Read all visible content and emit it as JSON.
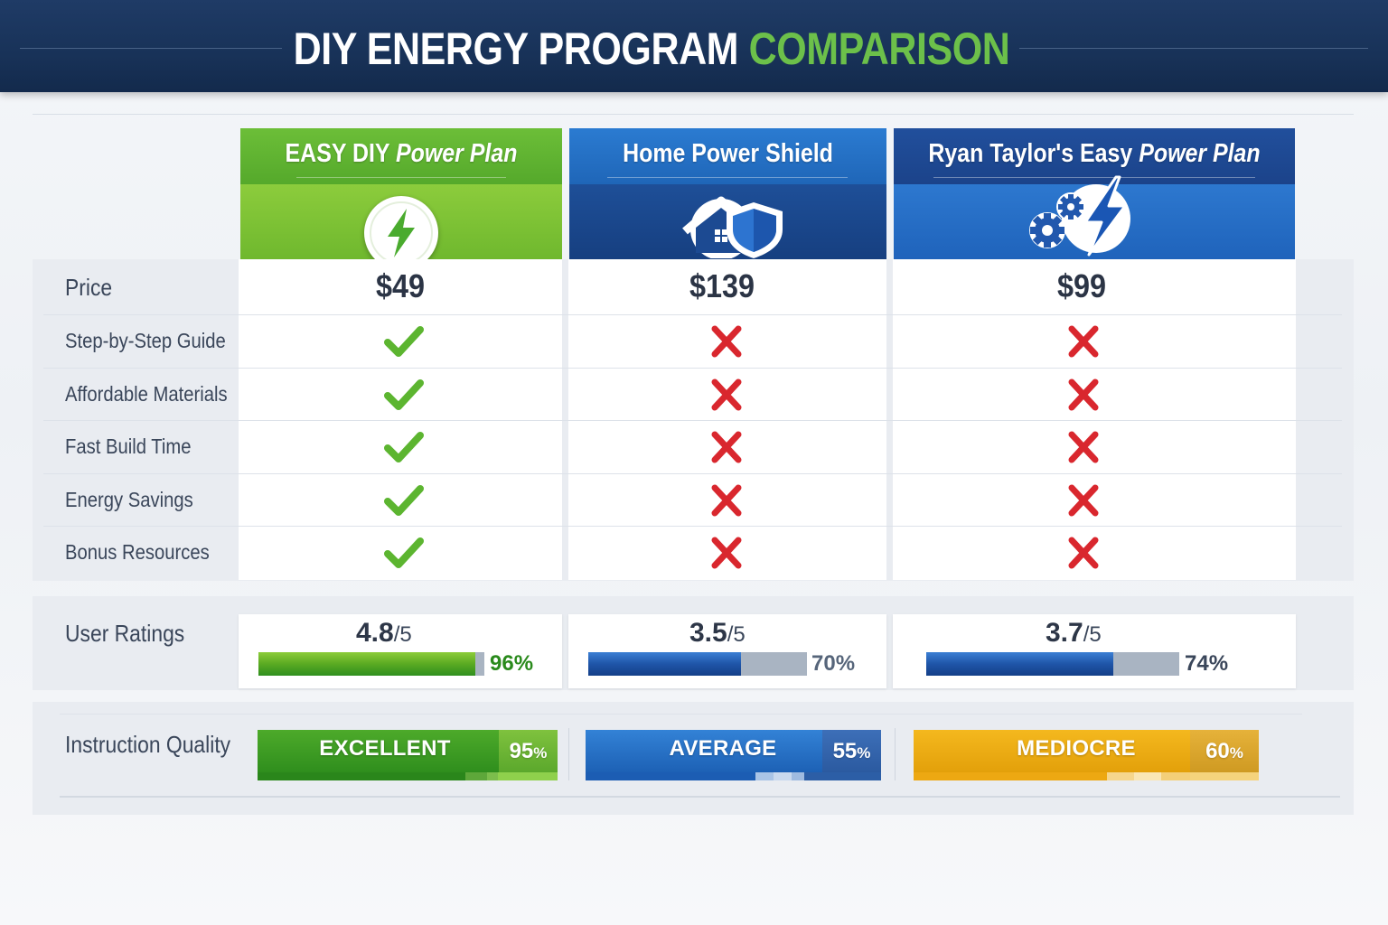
{
  "title": {
    "part1": "DIY ENERGY PROGRAM",
    "part2": "COMPARISON"
  },
  "programs": [
    {
      "name_main": "EASY DIY",
      "name_italic": "Power Plan",
      "icon": "lightning-bolt-icon",
      "price": "$49",
      "rating": "4.8",
      "rating_den": "/5",
      "rating_pct": "96%",
      "rating_fill": 0.96,
      "quality_label": "EXCELLENT",
      "quality_pct": "95",
      "quality_unit": "%",
      "color": "#5aaa22"
    },
    {
      "name_main": "Home Power Shield",
      "name_italic": "",
      "icon": "house-shield-icon",
      "price": "$139",
      "rating": "3.5",
      "rating_den": "/5",
      "rating_pct": "70%",
      "rating_fill": 0.7,
      "quality_label": "AVERAGE",
      "quality_pct": "55",
      "quality_unit": "%",
      "color": "#1f66b8"
    },
    {
      "name_main": "Ryan Taylor's Easy",
      "name_italic": "Power Plan",
      "icon": "gears-lightning-icon",
      "price": "$99",
      "rating": "3.7",
      "rating_den": "/5",
      "rating_pct": "74%",
      "rating_fill": 0.74,
      "quality_label": "MEDIOCRE",
      "quality_pct": "60",
      "quality_unit": "%",
      "color": "#e8a60c"
    }
  ],
  "rows": {
    "price": "Price",
    "features": [
      {
        "label": "Step-by-Step Guide",
        "values": [
          true,
          false,
          false
        ]
      },
      {
        "label": "Affordable Materials",
        "values": [
          true,
          false,
          false
        ]
      },
      {
        "label": "Fast Build Time",
        "values": [
          true,
          false,
          false
        ]
      },
      {
        "label": "Energy Savings",
        "values": [
          true,
          false,
          false
        ]
      },
      {
        "label": "Bonus Resources",
        "values": [
          true,
          false,
          false
        ]
      }
    ],
    "ratings": "User Ratings",
    "quality": "Instruction Quality"
  },
  "colors": {
    "check": "#5cb530",
    "cross": "#d9272e",
    "green": "#5aaa22",
    "blue": "#1f66b8",
    "gold": "#e8a60c"
  }
}
